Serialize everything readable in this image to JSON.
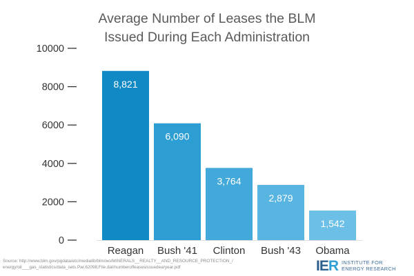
{
  "chart_data": {
    "type": "bar",
    "title": [
      "Average Number of Leases the BLM",
      "Issued During Each Administration"
    ],
    "categories": [
      "Reagan",
      "Bush '41",
      "Clinton",
      "Bush '43",
      "Obama"
    ],
    "values": [
      8821,
      6090,
      3764,
      2879,
      1542
    ],
    "value_labels": [
      "8,821",
      "6,090",
      "3,764",
      "2,879",
      "1,542"
    ],
    "ylim": [
      0,
      10000
    ],
    "yticks": [
      0,
      2000,
      4000,
      6000,
      8000,
      10000
    ],
    "ytick_labels": [
      "0",
      "2000",
      "4000",
      "6000",
      "8000",
      "10000"
    ],
    "xlabel": "",
    "ylabel": "",
    "grid": false,
    "bar_colors": [
      "#1189c4",
      "#2d9ed3",
      "#42a9da",
      "#58b4e0",
      "#6cbfe6"
    ]
  },
  "source": [
    "Source: http://www.blm.gov/pgdata/etc/medialib/blm/wo/MINERALS__REALTY__AND_RESOURCE_PROTECTION_/",
    "energy/oil___gas_statistics/data_sets.Par.62098.File.dat/numberofleasesissuedearyear.pdf"
  ],
  "logo": {
    "mark_ie": "IE",
    "mark_r": "R",
    "name": [
      "INSTITUTE FOR",
      "ENERGY RESEARCH"
    ]
  }
}
